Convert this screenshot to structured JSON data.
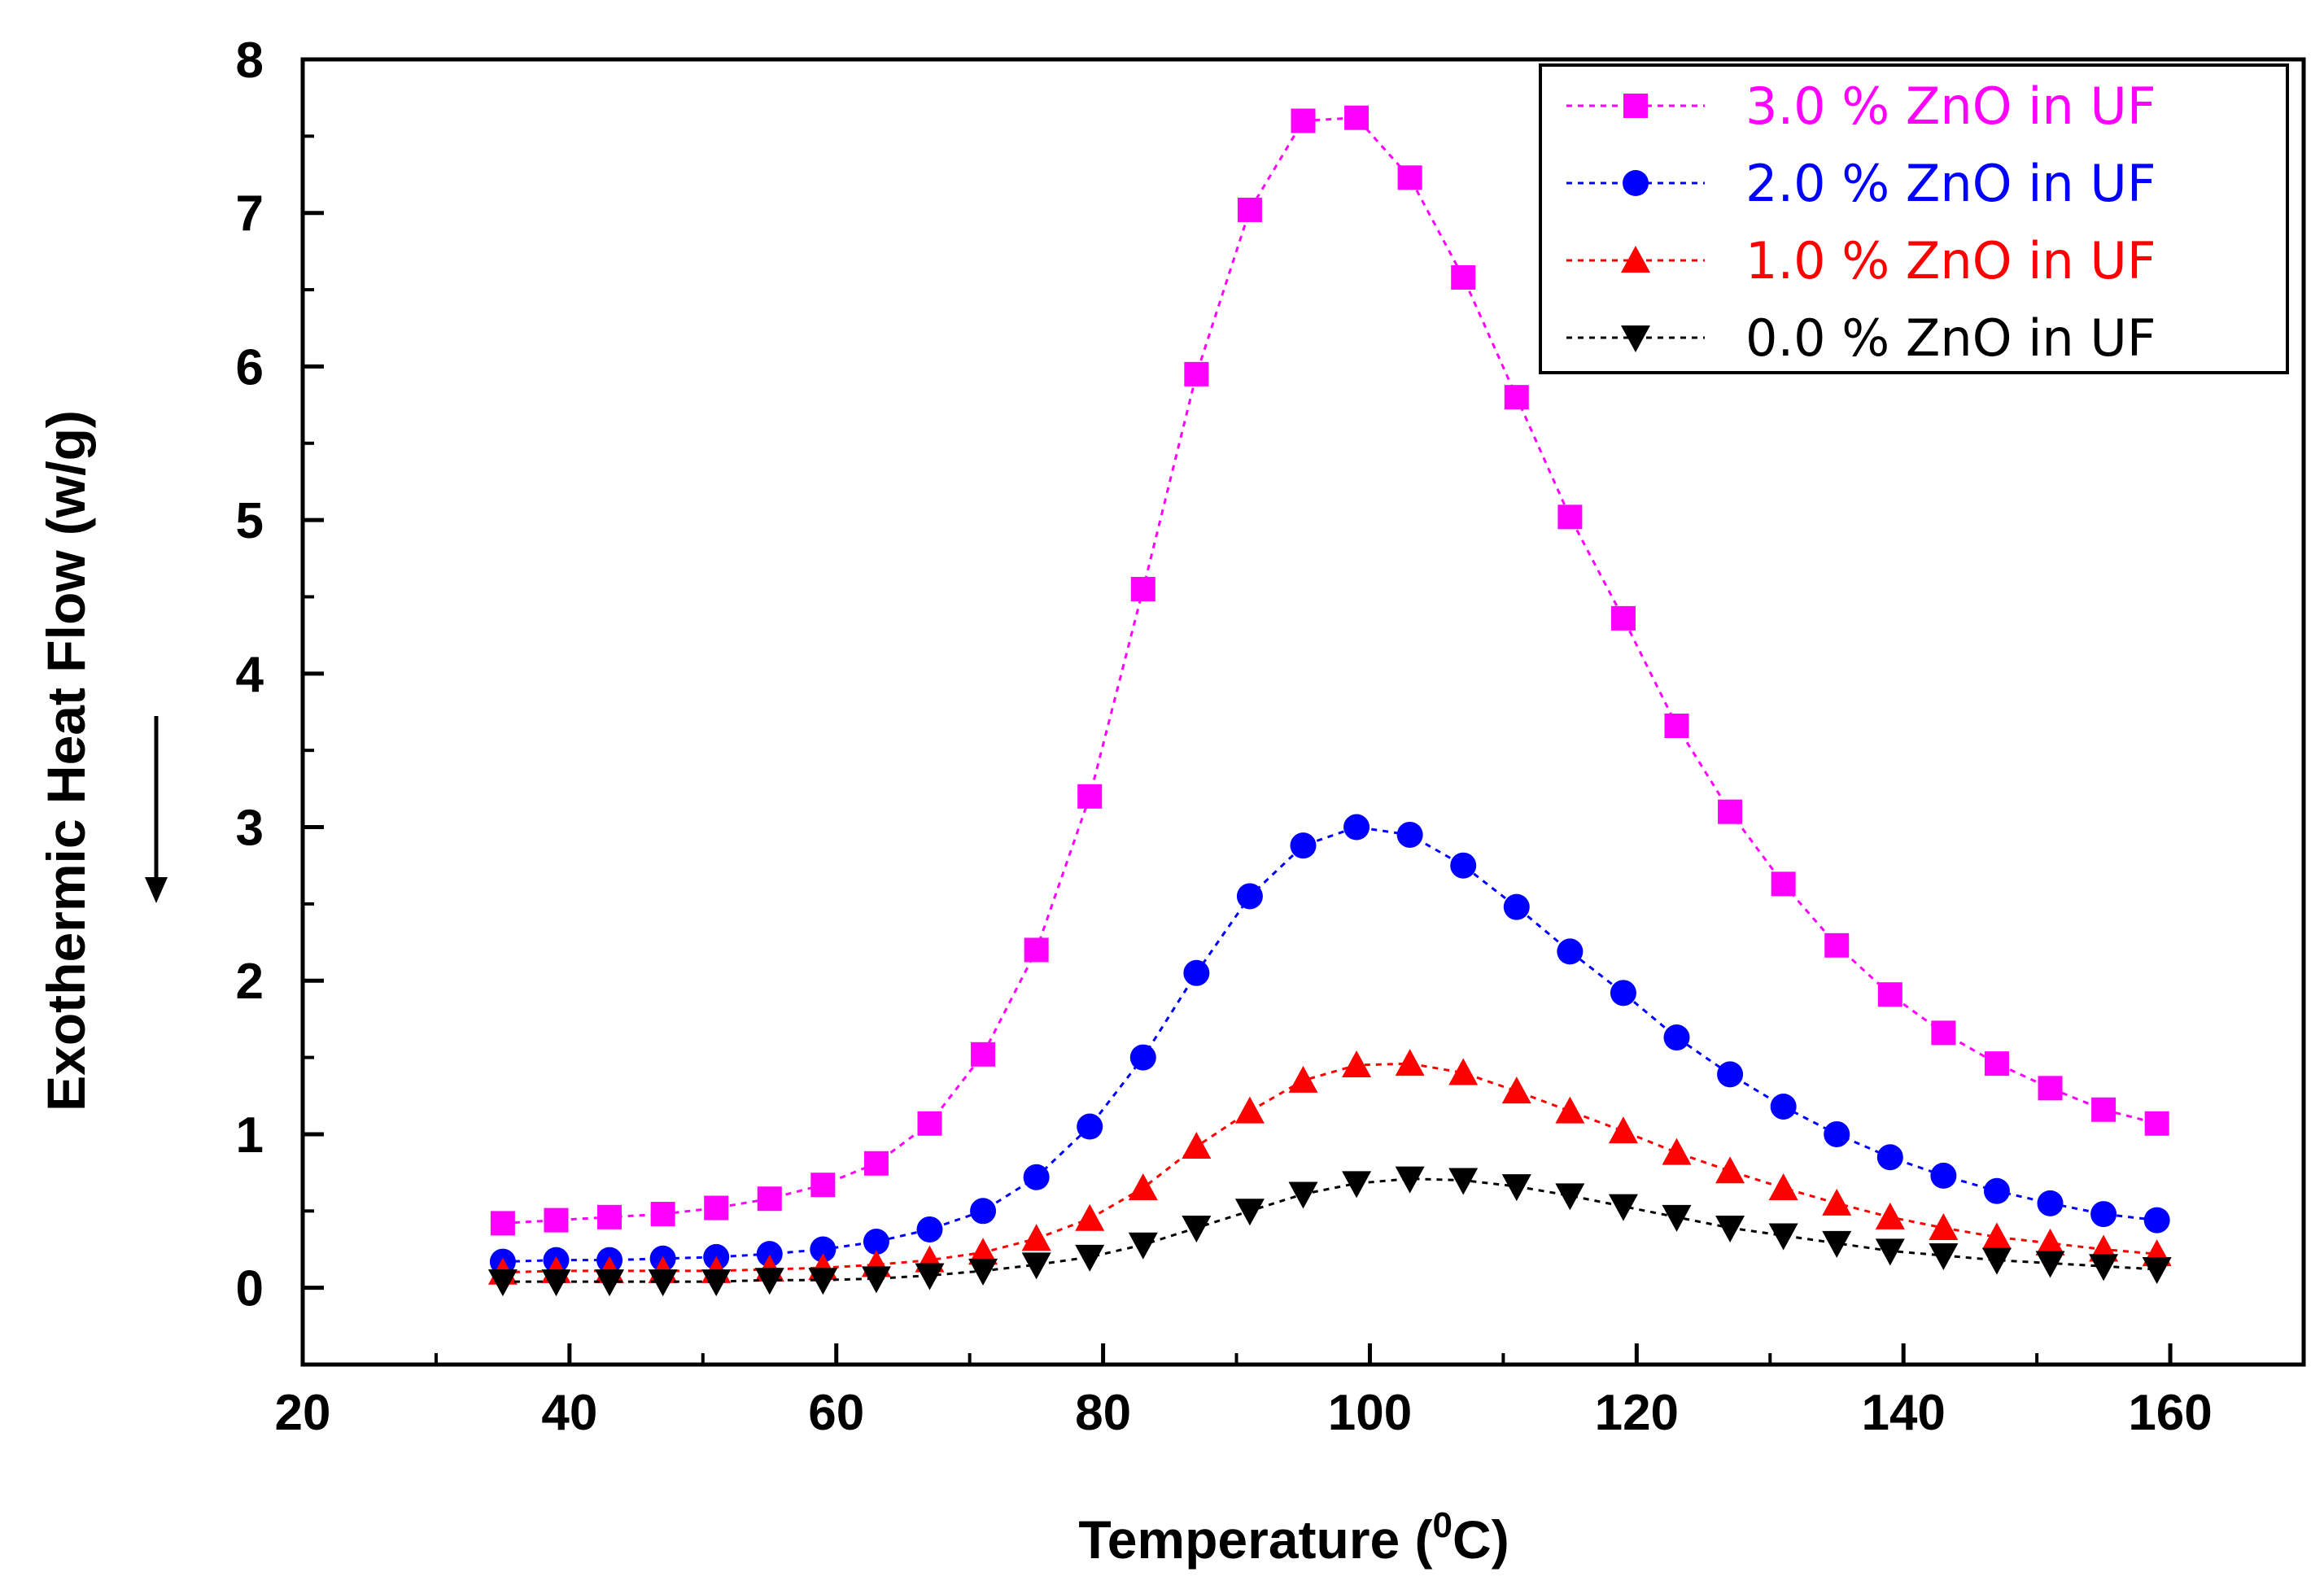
{
  "chart_data": {
    "type": "scatter",
    "xlabel": "Temperature (",
    "xlabel_sup": "0",
    "xlabel_unit": "C)",
    "ylabel": "Exothermic Heat Flow (w/g)",
    "xlim": [
      20,
      170
    ],
    "ylim": [
      -0.5,
      8
    ],
    "xticks": [
      "20",
      "40",
      "60",
      "80",
      "100",
      "120",
      "140",
      "160"
    ],
    "yticks": [
      "0",
      "1",
      "2",
      "3",
      "4",
      "5",
      "6",
      "7",
      "8"
    ],
    "grid": false,
    "legend_position": "top-right",
    "x": [
      35,
      39,
      43,
      47,
      51,
      55,
      59,
      63,
      67,
      71,
      75,
      79,
      83,
      87,
      91,
      95,
      99,
      103,
      107,
      111,
      115,
      119,
      123,
      127,
      131,
      135,
      139,
      143,
      147,
      151,
      155,
      159
    ],
    "series": [
      {
        "name": "3.0 % ZnO in UF",
        "color": "#ff00ff",
        "marker": "square",
        "values": [
          0.42,
          0.44,
          0.46,
          0.48,
          0.52,
          0.58,
          0.67,
          0.81,
          1.07,
          1.52,
          2.2,
          3.2,
          4.55,
          5.95,
          7.02,
          7.6,
          7.62,
          7.23,
          6.58,
          5.8,
          5.02,
          4.36,
          3.66,
          3.1,
          2.63,
          2.23,
          1.91,
          1.66,
          1.46,
          1.3,
          1.16,
          1.07
        ]
      },
      {
        "name": "2.0 % ZnO in UF",
        "color": "#0000ff",
        "marker": "circle",
        "values": [
          0.17,
          0.18,
          0.18,
          0.19,
          0.2,
          0.22,
          0.25,
          0.3,
          0.38,
          0.5,
          0.72,
          1.05,
          1.5,
          2.05,
          2.55,
          2.88,
          3.0,
          2.95,
          2.75,
          2.48,
          2.19,
          1.92,
          1.63,
          1.39,
          1.18,
          1.0,
          0.85,
          0.73,
          0.63,
          0.55,
          0.48,
          0.44
        ]
      },
      {
        "name": "1.0 % ZnO in UF",
        "color": "#ff0000",
        "marker": "triangle-up",
        "values": [
          0.1,
          0.11,
          0.11,
          0.11,
          0.11,
          0.12,
          0.13,
          0.15,
          0.18,
          0.23,
          0.32,
          0.45,
          0.65,
          0.92,
          1.15,
          1.35,
          1.45,
          1.46,
          1.4,
          1.28,
          1.15,
          1.02,
          0.88,
          0.76,
          0.65,
          0.55,
          0.46,
          0.39,
          0.33,
          0.29,
          0.25,
          0.22
        ]
      },
      {
        "name": "0.0 % ZnO in UF",
        "color": "#000000",
        "marker": "triangle-down",
        "values": [
          0.04,
          0.04,
          0.04,
          0.04,
          0.04,
          0.05,
          0.05,
          0.06,
          0.08,
          0.11,
          0.15,
          0.2,
          0.28,
          0.39,
          0.5,
          0.61,
          0.68,
          0.71,
          0.7,
          0.66,
          0.6,
          0.53,
          0.46,
          0.39,
          0.34,
          0.29,
          0.24,
          0.21,
          0.18,
          0.16,
          0.14,
          0.12
        ]
      }
    ]
  }
}
